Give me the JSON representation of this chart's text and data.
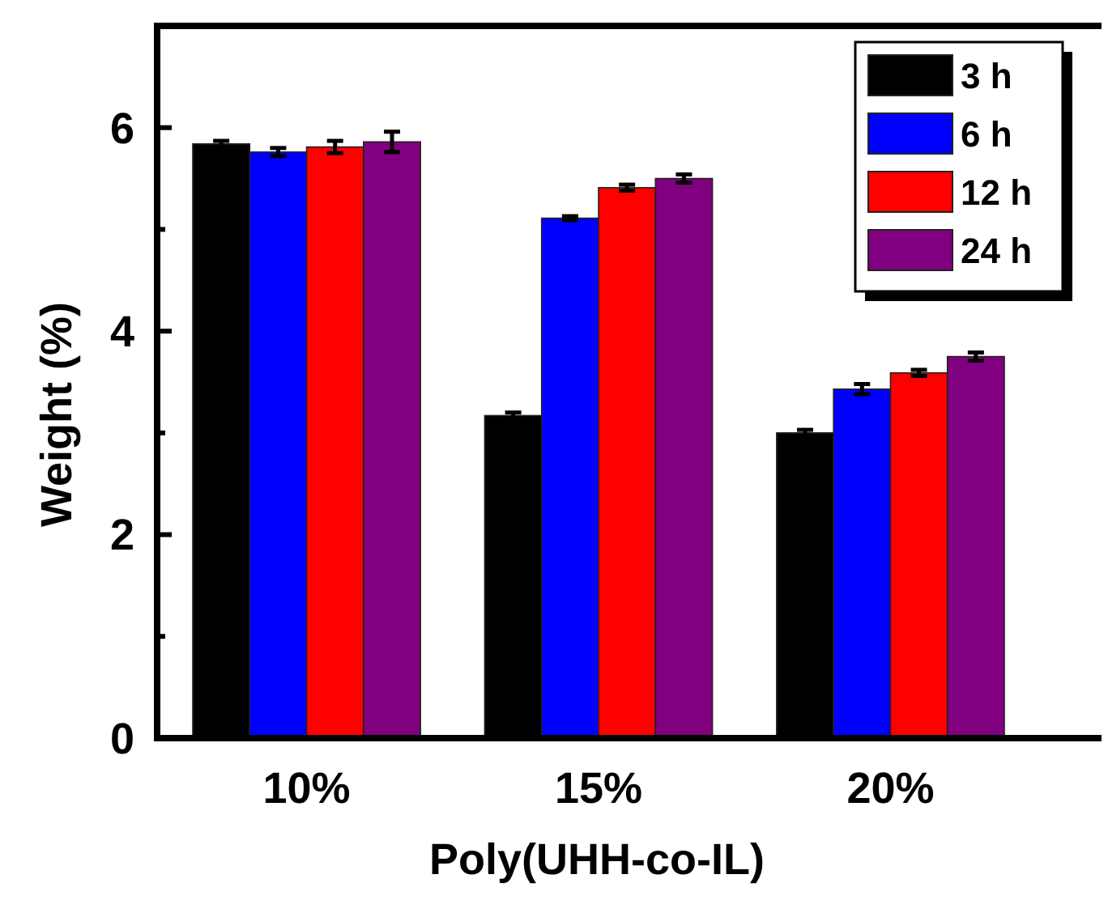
{
  "chart_data": {
    "type": "bar",
    "xlabel": "Poly(UHH-co-IL)",
    "ylabel": "Weight (%)",
    "categories": [
      "10%",
      "15%",
      "20%"
    ],
    "ylim": [
      0,
      7
    ],
    "yticks": [
      0,
      {
        "value": 1,
        "label": null
      },
      2,
      {
        "value": 3,
        "label": null
      },
      4,
      {
        "value": 5,
        "label": null
      },
      6
    ],
    "legend": "top right",
    "grid": false,
    "series": [
      {
        "name": "3 h",
        "color": "#000000",
        "values": [
          5.84,
          3.17,
          3.0
        ],
        "errors": [
          0.03,
          0.03,
          0.03
        ]
      },
      {
        "name": "6 h",
        "color": "#0000ff",
        "values": [
          5.76,
          5.11,
          3.43
        ],
        "errors": [
          0.04,
          0.02,
          0.05
        ]
      },
      {
        "name": "12 h",
        "color": "#ff0000",
        "values": [
          5.81,
          5.41,
          3.59
        ],
        "errors": [
          0.06,
          0.03,
          0.03
        ]
      },
      {
        "name": "24 h",
        "color": "#800080",
        "values": [
          5.86,
          5.5,
          3.75
        ],
        "errors": [
          0.1,
          0.04,
          0.04
        ]
      }
    ]
  }
}
